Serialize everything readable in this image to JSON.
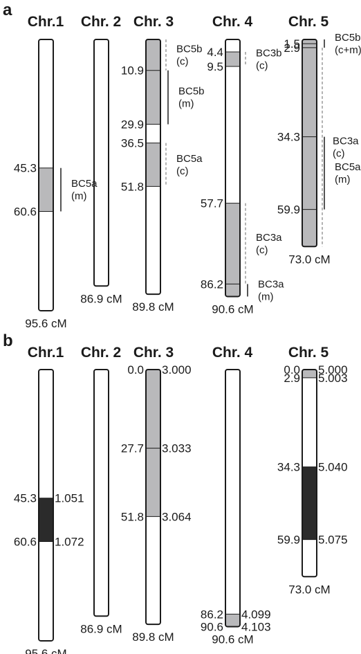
{
  "colors": {
    "outline": "#1a1a1a",
    "qtl_gray": "#b9b9bb",
    "qtl_black": "#2b2b2b",
    "dashed": "#9a9a9a",
    "background": "#ffffff"
  },
  "panel_a": {
    "label": "a",
    "chromosomes": [
      {
        "title": "Chr.1",
        "length_label": "95.6 cM",
        "length": 95.6,
        "regions": [
          {
            "start": 45.3,
            "end": 60.6,
            "fill": "gray"
          }
        ],
        "dividers": [],
        "left_labels": [
          {
            "text": "45.3",
            "pos": 45.3
          },
          {
            "text": "60.6",
            "pos": 60.6
          }
        ],
        "annotations": [
          {
            "lines": [
              "BC5a",
              "(m)"
            ],
            "from": 45.3,
            "to": 60.6,
            "style": "solid"
          }
        ]
      },
      {
        "title": "Chr. 2",
        "length_label": "86.9 cM",
        "length": 86.9,
        "regions": [],
        "dividers": [],
        "left_labels": [],
        "annotations": []
      },
      {
        "title": "Chr. 3",
        "length_label": "89.8 cM",
        "length": 89.8,
        "regions": [
          {
            "start": 0,
            "end": 29.9,
            "fill": "gray"
          },
          {
            "start": 36.5,
            "end": 51.8,
            "fill": "gray"
          }
        ],
        "dividers": [
          10.9
        ],
        "left_labels": [
          {
            "text": "10.9",
            "pos": 10.9
          },
          {
            "text": "29.9",
            "pos": 29.9
          },
          {
            "text": "36.5",
            "pos": 36.5
          },
          {
            "text": "51.8",
            "pos": 51.8
          }
        ],
        "annotations": [
          {
            "lines": [
              "BC5b",
              "(c)"
            ],
            "from": 0,
            "to": 10.9,
            "style": "dashed"
          },
          {
            "lines": [
              "BC5b",
              "(m)"
            ],
            "from": 10.9,
            "to": 29.9,
            "style": "solid"
          },
          {
            "lines": [
              "BC5a",
              "(c)"
            ],
            "from": 36.5,
            "to": 51.8,
            "style": "dashed"
          }
        ]
      },
      {
        "title": "Chr. 4",
        "length_label": "90.6 cM",
        "length": 90.6,
        "regions": [
          {
            "start": 4.4,
            "end": 9.5,
            "fill": "gray"
          },
          {
            "start": 57.7,
            "end": 90.6,
            "fill": "gray"
          }
        ],
        "dividers": [
          86.2
        ],
        "left_labels": [
          {
            "text": "4.4",
            "pos": 4.4
          },
          {
            "text": "9.5",
            "pos": 9.5
          },
          {
            "text": "57.7",
            "pos": 57.7
          },
          {
            "text": "86.2",
            "pos": 86.2
          }
        ],
        "annotations": [
          {
            "lines": [
              "BC3b",
              "(c)"
            ],
            "from": 4.4,
            "to": 9.5,
            "style": "dashed"
          },
          {
            "lines": [
              "BC3a",
              "(c)"
            ],
            "from": 57.7,
            "to": 86.2,
            "style": "dashed"
          },
          {
            "lines": [
              "BC3a",
              "(m)"
            ],
            "from": 86.2,
            "to": 90.6,
            "style": "solid"
          }
        ]
      },
      {
        "title": "Chr. 5",
        "length_label": "73.0 cM",
        "length": 73.0,
        "regions": [
          {
            "start": 0,
            "end": 73.0,
            "fill": "gray"
          }
        ],
        "dividers": [
          1.5,
          2.9,
          34.3,
          59.9
        ],
        "left_labels": [
          {
            "text": "1.5",
            "pos": 1.5
          },
          {
            "text": "2.9",
            "pos": 2.9
          },
          {
            "text": "34.3",
            "pos": 34.3
          },
          {
            "text": "59.9",
            "pos": 59.9
          }
        ],
        "annotations": [
          {
            "lines": [
              "BC5b",
              "(c+m)"
            ],
            "from": 0,
            "to": 2.9,
            "style": "solid"
          },
          {
            "lines": [
              "BC3a",
              "(c)"
            ],
            "from": 2.9,
            "to": 73.0,
            "style": "dashed"
          },
          {
            "lines": [
              "BC5a",
              "(m)"
            ],
            "from": 34.3,
            "to": 59.9,
            "style": "solid"
          }
        ]
      }
    ]
  },
  "panel_b": {
    "label": "b",
    "chromosomes": [
      {
        "title": "Chr.1",
        "length_label": "95.6 cM",
        "length": 95.6,
        "regions": [
          {
            "start": 45.3,
            "end": 60.6,
            "fill": "black"
          }
        ],
        "dividers": [],
        "left_labels": [
          {
            "text": "45.3",
            "pos": 45.3
          },
          {
            "text": "60.6",
            "pos": 60.6
          }
        ],
        "right_labels": [
          {
            "text": "1.051",
            "pos": 45.3
          },
          {
            "text": "1.072",
            "pos": 60.6
          }
        ]
      },
      {
        "title": "Chr. 2",
        "length_label": "86.9 cM",
        "length": 86.9,
        "regions": [],
        "dividers": [],
        "left_labels": [],
        "right_labels": []
      },
      {
        "title": "Chr. 3",
        "length_label": "89.8 cM",
        "length": 89.8,
        "regions": [
          {
            "start": 0,
            "end": 51.8,
            "fill": "gray"
          }
        ],
        "dividers": [
          27.7
        ],
        "left_labels": [
          {
            "text": "0.0",
            "pos": 0
          },
          {
            "text": "27.7",
            "pos": 27.7
          },
          {
            "text": "51.8",
            "pos": 51.8
          }
        ],
        "right_labels": [
          {
            "text": "3.000",
            "pos": 0
          },
          {
            "text": "3.033",
            "pos": 27.7
          },
          {
            "text": "3.064",
            "pos": 51.8
          }
        ]
      },
      {
        "title": "Chr. 4",
        "length_label": "90.6 cM",
        "length": 90.6,
        "regions": [
          {
            "start": 86.2,
            "end": 90.6,
            "fill": "gray"
          }
        ],
        "dividers": [],
        "left_labels": [
          {
            "text": "86.2",
            "pos": 86.2
          },
          {
            "text": "90.6",
            "pos": 90.6
          }
        ],
        "right_labels": [
          {
            "text": "4.099",
            "pos": 86.2
          },
          {
            "text": "4.103",
            "pos": 90.6
          }
        ]
      },
      {
        "title": "Chr. 5",
        "length_label": "73.0 cM",
        "length": 73.0,
        "regions": [
          {
            "start": 0,
            "end": 2.9,
            "fill": "gray"
          },
          {
            "start": 34.3,
            "end": 59.9,
            "fill": "black"
          }
        ],
        "dividers": [],
        "left_labels": [
          {
            "text": "0.0",
            "pos": 0
          },
          {
            "text": "2.9",
            "pos": 2.9
          },
          {
            "text": "34.3",
            "pos": 34.3
          },
          {
            "text": "59.9",
            "pos": 59.9
          }
        ],
        "right_labels": [
          {
            "text": "5.000",
            "pos": 0
          },
          {
            "text": "5.003",
            "pos": 2.9
          },
          {
            "text": "5.040",
            "pos": 34.3
          },
          {
            "text": "5.075",
            "pos": 59.9
          }
        ]
      }
    ]
  }
}
